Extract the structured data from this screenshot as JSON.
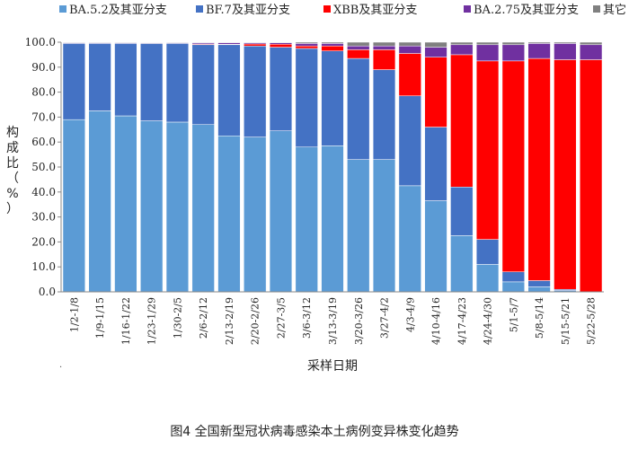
{
  "caption": "图4 全国新型冠状病毒感染本土病例变异株变化趋势",
  "chart_data": {
    "type": "bar",
    "stacked": true,
    "xlabel": "采样日期",
    "ylabel_chars": [
      "构",
      "成",
      "比",
      "（",
      "%",
      "）"
    ],
    "ylim": [
      0,
      100
    ],
    "yticks": [
      "0.0",
      "10.0",
      "20.0",
      "30.0",
      "40.0",
      "50.0",
      "60.0",
      "70.0",
      "80.0",
      "90.0",
      "100.0"
    ],
    "categories": [
      "1/2-1/8",
      "1/9-1/15",
      "1/16-1/22",
      "1/23-1/29",
      "1/30-2/5",
      "2/6-2/12",
      "2/13-2/19",
      "2/20-2/26",
      "2/27-3/5",
      "3/6-3/12",
      "3/13-3/19",
      "3/20-3/26",
      "3/27-4/2",
      "4/3-4/9",
      "4/10-4/16",
      "4/17-4/23",
      "4/24-4/30",
      "5/1-5/7",
      "5/8-5/14",
      "5/15-5/21",
      "5/22-5/28"
    ],
    "series": [
      {
        "name": "BA.5.2及其亚分支",
        "color": "#5B9BD5",
        "values": [
          69.0,
          72.5,
          70.5,
          68.5,
          68.0,
          67.0,
          62.5,
          62.0,
          64.5,
          58.0,
          58.5,
          53.0,
          53.0,
          42.5,
          36.5,
          22.5,
          11.0,
          4.0,
          2.0,
          0.5,
          0.0
        ]
      },
      {
        "name": "BF.7及其亚分支",
        "color": "#4472C4",
        "values": [
          30.5,
          27.0,
          29.0,
          31.0,
          31.5,
          32.0,
          36.5,
          36.5,
          33.5,
          39.5,
          38.0,
          40.5,
          36.0,
          36.0,
          29.5,
          19.5,
          10.0,
          4.0,
          2.5,
          0.5,
          0.0
        ]
      },
      {
        "name": "XBB及其亚分支",
        "color": "#FF0000",
        "values": [
          0.0,
          0.0,
          0.0,
          0.2,
          0.0,
          0.3,
          0.2,
          0.8,
          1.2,
          1.0,
          2.0,
          3.5,
          8.0,
          17.0,
          28.0,
          53.0,
          71.5,
          84.5,
          89.0,
          92.0,
          93.0
        ]
      },
      {
        "name": "BA.2.75及其亚分支",
        "color": "#7030A0",
        "values": [
          0.3,
          0.3,
          0.3,
          0.2,
          0.3,
          0.5,
          0.6,
          0.5,
          0.6,
          1.0,
          1.0,
          1.5,
          1.5,
          3.0,
          4.0,
          4.0,
          6.5,
          6.5,
          6.0,
          6.5,
          6.0
        ]
      },
      {
        "name": "其它",
        "color": "#808080",
        "values": [
          0.2,
          0.2,
          0.2,
          0.1,
          0.2,
          0.2,
          0.2,
          0.2,
          0.2,
          0.5,
          0.5,
          1.5,
          1.5,
          1.5,
          2.0,
          1.0,
          1.0,
          1.0,
          0.5,
          0.5,
          1.0
        ]
      }
    ],
    "legend": "top",
    "grid": false
  }
}
